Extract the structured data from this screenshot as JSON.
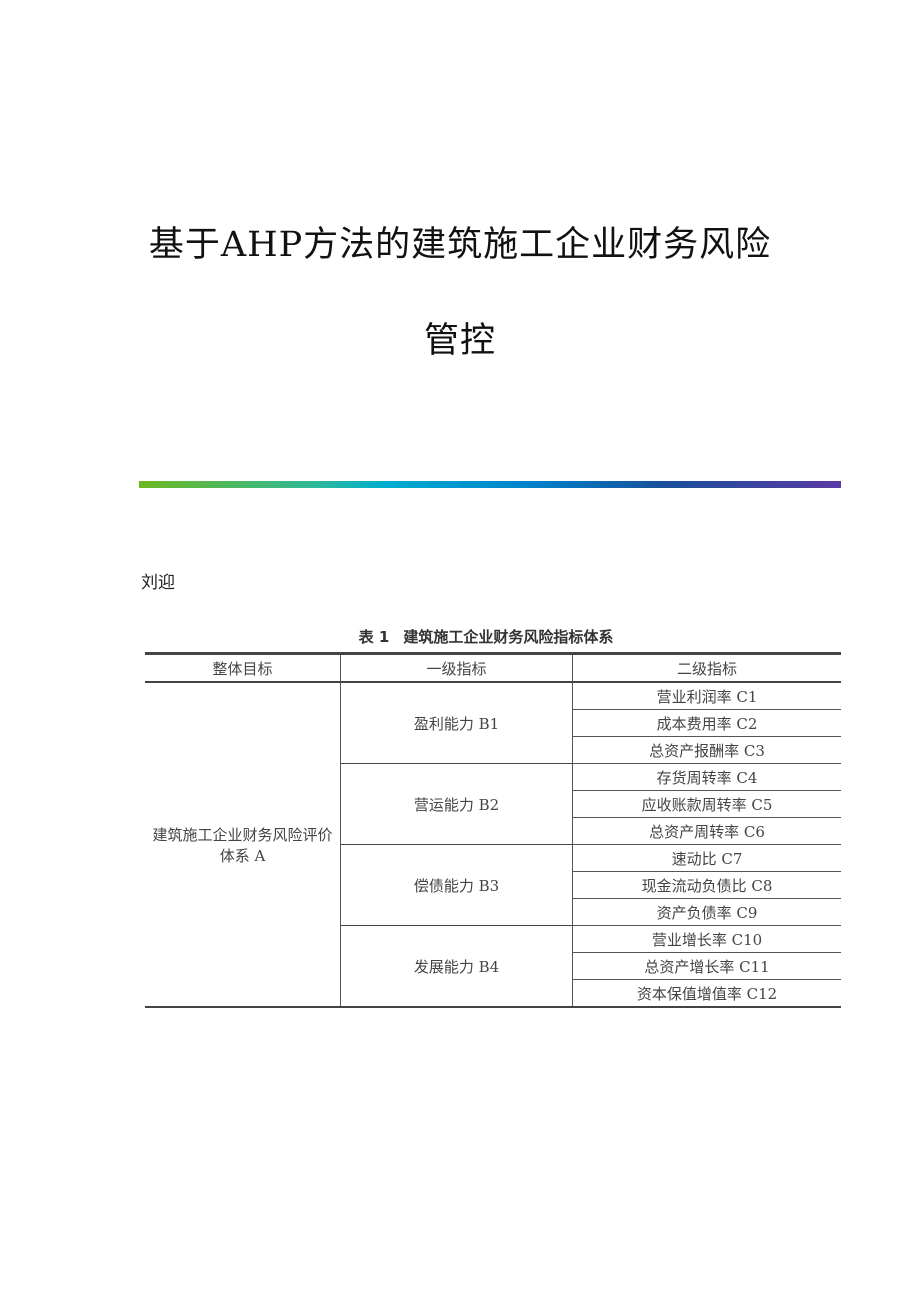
{
  "document": {
    "title_line1": "基于AHP方法的建筑施工企业财务风险",
    "title_line2": "管控",
    "author": "刘迎",
    "divider_gradient": [
      "#6db81f",
      "#00aecf",
      "#0083cc",
      "#1a4f9a",
      "#5a3aa5"
    ]
  },
  "table": {
    "caption_number": "表 1",
    "caption_text": "建筑施工企业财务风险指标体系",
    "headers": [
      "整体目标",
      "一级指标",
      "二级指标"
    ],
    "goal": "建筑施工企业财务风险评价体系 A",
    "groups": [
      {
        "label": "盈利能力 B1",
        "items": [
          "营业利润率 C1",
          "成本费用率 C2",
          "总资产报酬率 C3"
        ]
      },
      {
        "label": "营运能力 B2",
        "items": [
          "存货周转率 C4",
          "应收账款周转率 C5",
          "总资产周转率 C6"
        ]
      },
      {
        "label": "偿债能力 B3",
        "items": [
          "速动比 C7",
          "现金流动负债比 C8",
          "资产负债率 C9"
        ]
      },
      {
        "label": "发展能力 B4",
        "items": [
          "营业增长率 C10",
          "总资产增长率 C11",
          "资本保值增值率 C12"
        ]
      }
    ]
  }
}
